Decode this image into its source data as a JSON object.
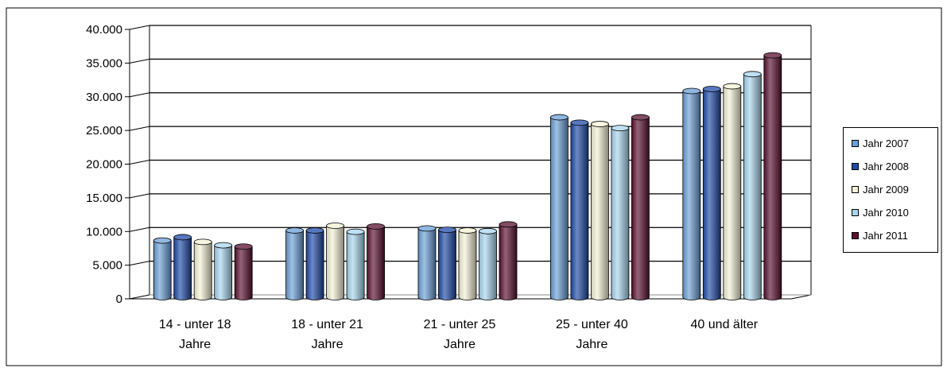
{
  "chart_data": {
    "type": "bar",
    "title": "",
    "xlabel": "",
    "ylabel": "",
    "ylim": [
      0,
      40000
    ],
    "yticks": [
      "0",
      "5.000",
      "10.000",
      "15.000",
      "20.000",
      "25.000",
      "30.000",
      "35.000",
      "40.000"
    ],
    "ytick_values": [
      0,
      5000,
      10000,
      15000,
      20000,
      25000,
      30000,
      35000,
      40000
    ],
    "grid": true,
    "legend_position": "right",
    "categories": [
      [
        "14 - unter 18",
        "Jahre"
      ],
      [
        "18 - unter 21",
        "Jahre"
      ],
      [
        "21 - unter 25",
        "Jahre"
      ],
      [
        "25 - unter 40",
        "Jahre"
      ],
      [
        "40 und älter"
      ]
    ],
    "series": [
      {
        "name": "Jahr 2007",
        "color": "#6b9fd6",
        "values": [
          8300,
          9800,
          10100,
          26600,
          30500
        ]
      },
      {
        "name": "Jahr 2008",
        "color": "#1f4aa8",
        "values": [
          8800,
          9800,
          9900,
          25800,
          30800
        ]
      },
      {
        "name": "Jahr 2009",
        "color": "#f4f2d6",
        "values": [
          8100,
          10500,
          9800,
          25600,
          31200
        ]
      },
      {
        "name": "Jahr 2010",
        "color": "#a8d6ee",
        "values": [
          7600,
          9600,
          9700,
          25000,
          33000
        ]
      },
      {
        "name": "Jahr 2011",
        "color": "#5a1030",
        "values": [
          7400,
          10400,
          10700,
          26600,
          35800
        ]
      }
    ]
  }
}
